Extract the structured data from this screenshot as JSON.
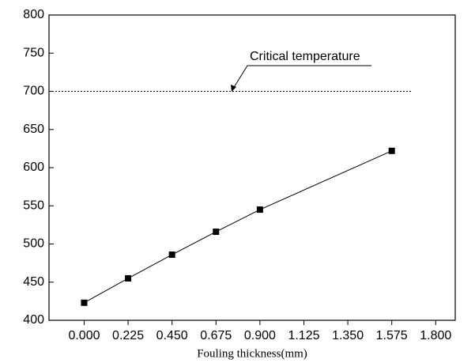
{
  "chart_data": {
    "type": "line",
    "x_label": "Fouling thickness(mm)",
    "x": [
      0,
      0.225,
      0.45,
      0.675,
      0.9,
      1.575
    ],
    "values": [
      423,
      455,
      486,
      516,
      545,
      622
    ],
    "color": "#000000",
    "marker": "square",
    "xlim": [
      -0.18,
      1.9
    ],
    "xticks": [
      {
        "value": 0,
        "label": "0.000"
      },
      {
        "value": 0.225,
        "label": "0.225"
      },
      {
        "value": 0.45,
        "label": "0.450"
      },
      {
        "value": 0.675,
        "label": "0.675"
      },
      {
        "value": 0.9,
        "label": "0.900"
      },
      {
        "value": 1.125,
        "label": "1.125"
      },
      {
        "value": 1.35,
        "label": "1.350"
      },
      {
        "value": 1.575,
        "label": "1.575"
      },
      {
        "value": 1.8,
        "label": "1.800"
      }
    ],
    "ylim": [
      400,
      800
    ],
    "yticks": [
      400,
      450,
      500,
      550,
      600,
      650,
      700,
      750,
      800
    ],
    "reference_line": {
      "value": 700,
      "label": "Critical temperature"
    },
    "grid": false
  }
}
